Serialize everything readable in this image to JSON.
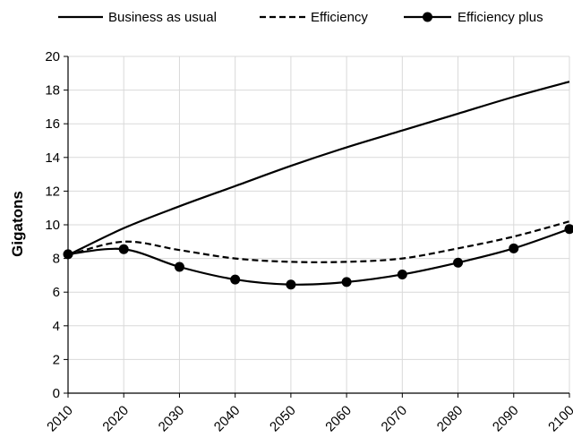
{
  "chart_data": {
    "type": "line",
    "title": "",
    "xlabel": "",
    "ylabel": "Gigatons",
    "x": [
      2010,
      2020,
      2030,
      2040,
      2050,
      2060,
      2070,
      2080,
      2090,
      2100
    ],
    "xlim": [
      2010,
      2100
    ],
    "ylim": [
      0,
      20
    ],
    "yticks": [
      0,
      2,
      4,
      6,
      8,
      10,
      12,
      14,
      16,
      18,
      20
    ],
    "grid": true,
    "legend_position": "top",
    "series": [
      {
        "name": "Business as usual",
        "style": "solid",
        "markers": false,
        "values": [
          8.2,
          9.8,
          11.1,
          12.3,
          13.5,
          14.6,
          15.6,
          16.6,
          17.6,
          18.5
        ]
      },
      {
        "name": "Efficiency",
        "style": "dashed",
        "markers": false,
        "values": [
          8.2,
          9.0,
          8.5,
          8.0,
          7.8,
          7.8,
          8.0,
          8.6,
          9.3,
          10.2
        ]
      },
      {
        "name": "Efficiency plus",
        "style": "solid",
        "markers": true,
        "values": [
          8.25,
          8.55,
          7.5,
          6.75,
          6.45,
          6.6,
          7.05,
          7.75,
          8.6,
          9.75
        ]
      }
    ]
  }
}
